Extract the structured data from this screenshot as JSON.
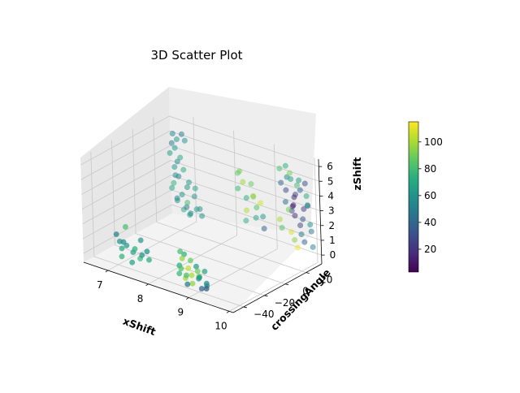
{
  "chart_data": {
    "type": "scatter",
    "projection": "3d",
    "title": "3D Scatter Plot",
    "xlabel": "xShift",
    "ylabel": "crossingAngle",
    "zlabel": "zShift",
    "xlim": [
      6.4,
      10.1
    ],
    "ylim": [
      -50,
      35
    ],
    "zlim": [
      -0.6,
      6.5
    ],
    "xticks": [
      "7",
      "8",
      "9",
      "10"
    ],
    "yticks": [
      "-40",
      "-20",
      "0",
      "20"
    ],
    "zticks": [
      "0",
      "1",
      "2",
      "3",
      "4",
      "5",
      "6"
    ],
    "colorbar": {
      "colormap": "viridis",
      "range": [
        3,
        115
      ],
      "ticks": [
        "20",
        "40",
        "60",
        "80",
        "100"
      ]
    },
    "grid": true,
    "marker_alpha": 0.75,
    "color_value_key": "c",
    "points": [
      {
        "x": 6.6,
        "y": 30,
        "z": 5.2,
        "c": 55
      },
      {
        "x": 6.7,
        "y": 30,
        "z": 4.9,
        "c": 60
      },
      {
        "x": 6.6,
        "y": 29,
        "z": 4.6,
        "c": 50
      },
      {
        "x": 6.8,
        "y": 31,
        "z": 5.3,
        "c": 48
      },
      {
        "x": 6.7,
        "y": 28,
        "z": 4.4,
        "c": 62
      },
      {
        "x": 6.9,
        "y": 30,
        "z": 5.0,
        "c": 58
      },
      {
        "x": 6.6,
        "y": 27,
        "z": 4.0,
        "c": 66
      },
      {
        "x": 6.8,
        "y": 29,
        "z": 3.8,
        "c": 70
      },
      {
        "x": 6.7,
        "y": 30,
        "z": 3.4,
        "c": 55
      },
      {
        "x": 6.9,
        "y": 28,
        "z": 3.1,
        "c": 72
      },
      {
        "x": 6.6,
        "y": 31,
        "z": 2.9,
        "c": 60
      },
      {
        "x": 6.8,
        "y": 27,
        "z": 2.6,
        "c": 52
      },
      {
        "x": 7.0,
        "y": 29,
        "z": 2.3,
        "c": 64
      },
      {
        "x": 6.7,
        "y": 26,
        "z": 2.1,
        "c": 75
      },
      {
        "x": 6.9,
        "y": 31,
        "z": 1.8,
        "c": 58
      },
      {
        "x": 6.6,
        "y": 28,
        "z": 1.6,
        "c": 68
      },
      {
        "x": 7.1,
        "y": 30,
        "z": 1.4,
        "c": 60
      },
      {
        "x": 6.8,
        "y": 25,
        "z": 1.2,
        "c": 54
      },
      {
        "x": 7.0,
        "y": 27,
        "z": 1.0,
        "c": 80
      },
      {
        "x": 6.7,
        "y": 29,
        "z": 0.8,
        "c": 62
      },
      {
        "x": 7.2,
        "y": 28,
        "z": 0.7,
        "c": 66
      },
      {
        "x": 6.9,
        "y": 30,
        "z": 0.5,
        "c": 48
      },
      {
        "x": 7.1,
        "y": 26,
        "z": 0.4,
        "c": 58
      },
      {
        "x": 6.8,
        "y": 31,
        "z": 0.2,
        "c": 70
      },
      {
        "x": 7.0,
        "y": 29,
        "z": 0.1,
        "c": 64
      },
      {
        "x": 7.2,
        "y": 31,
        "z": 0.6,
        "c": 56
      },
      {
        "x": 6.9,
        "y": 26,
        "z": 1.5,
        "c": 62
      },
      {
        "x": 7.3,
        "y": 29,
        "z": 0.3,
        "c": 60
      },
      {
        "x": 7.1,
        "y": 31,
        "z": 1.9,
        "c": 66
      },
      {
        "x": 6.8,
        "y": 24,
        "z": 2.8,
        "c": 58
      },
      {
        "x": 7.0,
        "y": -38,
        "z": 0.9,
        "c": 62
      },
      {
        "x": 7.1,
        "y": -40,
        "z": 0.6,
        "c": 70
      },
      {
        "x": 7.3,
        "y": -37,
        "z": 0.4,
        "c": 66
      },
      {
        "x": 7.2,
        "y": -42,
        "z": 1.2,
        "c": 56
      },
      {
        "x": 7.4,
        "y": -39,
        "z": 0.8,
        "c": 74
      },
      {
        "x": 7.0,
        "y": -41,
        "z": 1.5,
        "c": 52
      },
      {
        "x": 7.5,
        "y": -38,
        "z": 0.2,
        "c": 78
      },
      {
        "x": 7.3,
        "y": -43,
        "z": 1.1,
        "c": 64
      },
      {
        "x": 7.6,
        "y": -40,
        "z": 0.6,
        "c": 60
      },
      {
        "x": 7.1,
        "y": -36,
        "z": 1.9,
        "c": 82
      },
      {
        "x": 7.4,
        "y": -42,
        "z": 0.0,
        "c": 68
      },
      {
        "x": 7.7,
        "y": -39,
        "z": 0.9,
        "c": 58
      },
      {
        "x": 7.2,
        "y": -44,
        "z": 0.3,
        "c": 76
      },
      {
        "x": 7.8,
        "y": -41,
        "z": 0.5,
        "c": 72
      },
      {
        "x": 7.5,
        "y": -37,
        "z": 1.4,
        "c": 62
      },
      {
        "x": 8.3,
        "y": 28,
        "z": 4.3,
        "c": 90
      },
      {
        "x": 8.2,
        "y": 30,
        "z": 4.0,
        "c": 86
      },
      {
        "x": 8.4,
        "y": 27,
        "z": 3.7,
        "c": 98
      },
      {
        "x": 8.5,
        "y": 31,
        "z": 3.5,
        "c": 88
      },
      {
        "x": 8.3,
        "y": 26,
        "z": 3.2,
        "c": 78
      },
      {
        "x": 8.6,
        "y": 29,
        "z": 2.8,
        "c": 92
      },
      {
        "x": 8.4,
        "y": 30,
        "z": 2.5,
        "c": 70
      },
      {
        "x": 8.7,
        "y": 28,
        "z": 2.2,
        "c": 84
      },
      {
        "x": 8.5,
        "y": 26,
        "z": 1.9,
        "c": 102
      },
      {
        "x": 8.8,
        "y": 30,
        "z": 1.6,
        "c": 60
      },
      {
        "x": 8.6,
        "y": 31,
        "z": 1.3,
        "c": 66
      },
      {
        "x": 8.9,
        "y": 27,
        "z": 1.0,
        "c": 38
      },
      {
        "x": 8.4,
        "y": 29,
        "z": 1.0,
        "c": 74
      },
      {
        "x": 8.7,
        "y": 25,
        "z": 3.1,
        "c": 96
      },
      {
        "x": 8.8,
        "y": 28,
        "z": 2.6,
        "c": 108
      },
      {
        "x": 8.5,
        "y": -38,
        "z": 1.6,
        "c": 80
      },
      {
        "x": 8.6,
        "y": -40,
        "z": 1.3,
        "c": 96
      },
      {
        "x": 8.7,
        "y": -36,
        "z": 1.1,
        "c": 88
      },
      {
        "x": 8.8,
        "y": -42,
        "z": 0.9,
        "c": 104
      },
      {
        "x": 8.5,
        "y": -39,
        "z": 0.7,
        "c": 72
      },
      {
        "x": 8.9,
        "y": -37,
        "z": 0.6,
        "c": 90
      },
      {
        "x": 8.6,
        "y": -43,
        "z": 0.4,
        "c": 78
      },
      {
        "x": 9.0,
        "y": -40,
        "z": 0.3,
        "c": 60
      },
      {
        "x": 8.7,
        "y": -41,
        "z": 0.1,
        "c": 98
      },
      {
        "x": 9.1,
        "y": -38,
        "z": 0.8,
        "c": 68
      },
      {
        "x": 8.8,
        "y": -44,
        "z": 0.5,
        "c": 82
      },
      {
        "x": 9.0,
        "y": -42,
        "z": 1.2,
        "c": 66
      },
      {
        "x": 8.9,
        "y": -36,
        "z": 0.2,
        "c": 92
      },
      {
        "x": 9.2,
        "y": -40,
        "z": 0.0,
        "c": 58
      },
      {
        "x": 8.6,
        "y": -38,
        "z": 1.5,
        "c": 74
      },
      {
        "x": 8.8,
        "y": -39,
        "z": 0.3,
        "c": 100
      },
      {
        "x": 9.1,
        "y": -43,
        "z": 0.6,
        "c": 64
      },
      {
        "x": 8.7,
        "y": -45,
        "z": 0.9,
        "c": 84
      },
      {
        "x": 9.0,
        "y": -46,
        "z": 0.2,
        "c": 96
      },
      {
        "x": 9.3,
        "y": -44,
        "z": 0.4,
        "c": 56
      },
      {
        "x": 8.9,
        "y": -47,
        "z": 0.1,
        "c": 48
      },
      {
        "x": 9.2,
        "y": -45,
        "z": 0.0,
        "c": 42
      },
      {
        "x": 9.4,
        "y": -48,
        "z": 0.3,
        "c": 36
      },
      {
        "x": 9.3,
        "y": 28,
        "z": 5.4,
        "c": 82
      },
      {
        "x": 9.5,
        "y": 30,
        "z": 5.2,
        "c": 92
      },
      {
        "x": 9.6,
        "y": 27,
        "z": 5.0,
        "c": 66
      },
      {
        "x": 9.4,
        "y": 31,
        "z": 4.8,
        "c": 56
      },
      {
        "x": 9.7,
        "y": 29,
        "z": 4.6,
        "c": 80
      },
      {
        "x": 9.8,
        "y": 28,
        "z": 4.4,
        "c": 40
      },
      {
        "x": 9.5,
        "y": 26,
        "z": 4.2,
        "c": 30
      },
      {
        "x": 9.9,
        "y": 30,
        "z": 4.0,
        "c": 70
      },
      {
        "x": 9.6,
        "y": 31,
        "z": 3.8,
        "c": 24
      },
      {
        "x": 10.0,
        "y": 27,
        "z": 3.6,
        "c": 62
      },
      {
        "x": 9.7,
        "y": 25,
        "z": 3.4,
        "c": 12
      },
      {
        "x": 9.4,
        "y": 29,
        "z": 3.2,
        "c": 44
      },
      {
        "x": 9.8,
        "y": 31,
        "z": 3.0,
        "c": 22
      },
      {
        "x": 9.5,
        "y": 28,
        "z": 2.8,
        "c": 90
      },
      {
        "x": 9.9,
        "y": 26,
        "z": 2.6,
        "c": 34
      },
      {
        "x": 9.6,
        "y": 30,
        "z": 2.4,
        "c": 16
      },
      {
        "x": 10.0,
        "y": 29,
        "z": 2.2,
        "c": 58
      },
      {
        "x": 9.3,
        "y": 27,
        "z": 2.0,
        "c": 100
      },
      {
        "x": 9.7,
        "y": 31,
        "z": 1.8,
        "c": 26
      },
      {
        "x": 9.4,
        "y": 25,
        "z": 1.6,
        "c": 84
      },
      {
        "x": 9.8,
        "y": 28,
        "z": 1.4,
        "c": 46
      },
      {
        "x": 9.5,
        "y": 30,
        "z": 1.2,
        "c": 108
      },
      {
        "x": 9.9,
        "y": 27,
        "z": 1.0,
        "c": 38
      },
      {
        "x": 9.6,
        "y": 29,
        "z": 0.8,
        "c": 94
      },
      {
        "x": 10.0,
        "y": 31,
        "z": 0.6,
        "c": 50
      },
      {
        "x": 9.7,
        "y": 26,
        "z": 3.9,
        "c": 18
      },
      {
        "x": 9.9,
        "y": 29,
        "z": 4.9,
        "c": 30
      },
      {
        "x": 9.4,
        "y": 30,
        "z": 5.6,
        "c": 72
      },
      {
        "x": 9.8,
        "y": 27,
        "z": 5.1,
        "c": 64
      },
      {
        "x": 9.6,
        "y": 28,
        "z": 3.1,
        "c": 20
      },
      {
        "x": 10.0,
        "y": 30,
        "z": 1.7,
        "c": 44
      },
      {
        "x": 9.5,
        "y": 31,
        "z": 2.6,
        "c": 28
      },
      {
        "x": 9.3,
        "y": 29,
        "z": 4.4,
        "c": 40
      },
      {
        "x": 9.7,
        "y": 28,
        "z": 0.4,
        "c": 112
      },
      {
        "x": 9.9,
        "y": 31,
        "z": 3.3,
        "c": 36
      }
    ]
  }
}
